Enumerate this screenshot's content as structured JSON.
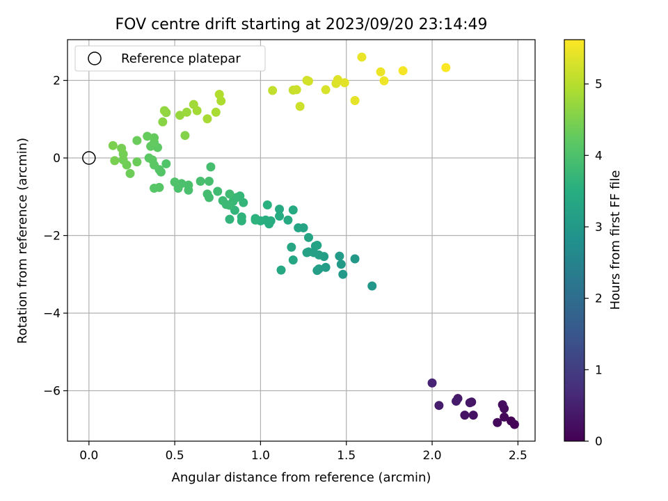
{
  "chart_data": {
    "type": "scatter",
    "title": "FOV centre drift starting at 2023/09/20 23:14:49",
    "xlabel": "Angular distance from reference (arcmin)",
    "ylabel": "Rotation from reference (arcmin)",
    "xlim": [
      -0.125,
      2.6
    ],
    "ylim": [
      -7.3,
      3.05
    ],
    "xticks": [
      {
        "v": 0,
        "label": "0.0"
      },
      {
        "v": 0.5,
        "label": "0.5"
      },
      {
        "v": 1,
        "label": "1.0"
      },
      {
        "v": 1.5,
        "label": "1.5"
      },
      {
        "v": 2,
        "label": "2.0"
      },
      {
        "v": 2.5,
        "label": "2.5"
      }
    ],
    "yticks": [
      {
        "v": -6,
        "label": "−6"
      },
      {
        "v": -4,
        "label": "−4"
      },
      {
        "v": -2,
        "label": "−2"
      },
      {
        "v": 0,
        "label": "0"
      },
      {
        "v": 2,
        "label": "2"
      }
    ],
    "grid": true,
    "legend": {
      "position": "upper-left",
      "entries": [
        "Reference platepar"
      ]
    },
    "reference_point": {
      "x": 0,
      "y": 0,
      "label": "Reference platepar"
    },
    "colorbar": {
      "label": "Hours from first FF file",
      "colormap": "viridis",
      "range": [
        0,
        5.62
      ],
      "ticks": [
        {
          "v": 0,
          "label": "0"
        },
        {
          "v": 1,
          "label": "1"
        },
        {
          "v": 2,
          "label": "2"
        },
        {
          "v": 3,
          "label": "3"
        },
        {
          "v": 4,
          "label": "4"
        },
        {
          "v": 5,
          "label": "5"
        }
      ]
    },
    "points": [
      {
        "x": 2.48,
        "y": -6.87,
        "t": 0.03
      },
      {
        "x": 2.46,
        "y": -6.78,
        "t": 0.06
      },
      {
        "x": 2.42,
        "y": -6.68,
        "t": 0.1
      },
      {
        "x": 2.38,
        "y": -6.82,
        "t": 0.13
      },
      {
        "x": 2.42,
        "y": -6.46,
        "t": 0.16
      },
      {
        "x": 2.41,
        "y": -6.36,
        "t": 0.2
      },
      {
        "x": 2.24,
        "y": -6.63,
        "t": 0.25
      },
      {
        "x": 2.19,
        "y": -6.63,
        "t": 0.28
      },
      {
        "x": 2.23,
        "y": -6.29,
        "t": 0.32
      },
      {
        "x": 2.22,
        "y": -6.31,
        "t": 0.35
      },
      {
        "x": 2.15,
        "y": -6.2,
        "t": 0.38
      },
      {
        "x": 2.14,
        "y": -6.27,
        "t": 0.42
      },
      {
        "x": 2.04,
        "y": -6.38,
        "t": 0.47
      },
      {
        "x": 2.0,
        "y": -5.8,
        "t": 0.55
      },
      {
        "x": 1.65,
        "y": -3.3,
        "t": 2.95
      },
      {
        "x": 1.55,
        "y": -2.6,
        "t": 2.98
      },
      {
        "x": 1.48,
        "y": -3.0,
        "t": 3.0
      },
      {
        "x": 1.47,
        "y": -2.74,
        "t": 3.02
      },
      {
        "x": 1.46,
        "y": -2.53,
        "t": 3.05
      },
      {
        "x": 1.38,
        "y": -2.82,
        "t": 3.07
      },
      {
        "x": 1.37,
        "y": -2.54,
        "t": 3.1
      },
      {
        "x": 1.34,
        "y": -2.86,
        "t": 3.12
      },
      {
        "x": 1.33,
        "y": -2.9,
        "t": 3.13
      },
      {
        "x": 1.34,
        "y": -2.5,
        "t": 3.15
      },
      {
        "x": 1.32,
        "y": -2.27,
        "t": 3.17
      },
      {
        "x": 1.31,
        "y": -2.44,
        "t": 3.18
      },
      {
        "x": 1.28,
        "y": -2.42,
        "t": 3.2
      },
      {
        "x": 1.27,
        "y": -2.44,
        "t": 3.22
      },
      {
        "x": 1.33,
        "y": -2.25,
        "t": 3.24
      },
      {
        "x": 1.28,
        "y": -2.05,
        "t": 3.26
      },
      {
        "x": 1.25,
        "y": -1.8,
        "t": 3.28
      },
      {
        "x": 1.22,
        "y": -1.8,
        "t": 3.3
      },
      {
        "x": 1.18,
        "y": -2.3,
        "t": 3.32
      },
      {
        "x": 1.19,
        "y": -2.63,
        "t": 3.34
      },
      {
        "x": 1.12,
        "y": -2.89,
        "t": 3.36
      },
      {
        "x": 1.16,
        "y": -1.6,
        "t": 3.38
      },
      {
        "x": 1.19,
        "y": -1.34,
        "t": 3.4
      },
      {
        "x": 1.11,
        "y": -1.32,
        "t": 3.42
      },
      {
        "x": 1.11,
        "y": -1.5,
        "t": 3.44
      },
      {
        "x": 1.06,
        "y": -1.62,
        "t": 3.46
      },
      {
        "x": 1.05,
        "y": -1.7,
        "t": 3.48
      },
      {
        "x": 1.03,
        "y": -1.6,
        "t": 3.5
      },
      {
        "x": 1.0,
        "y": -1.62,
        "t": 3.52
      },
      {
        "x": 1.04,
        "y": -1.21,
        "t": 3.54
      },
      {
        "x": 0.97,
        "y": -1.56,
        "t": 3.56
      },
      {
        "x": 0.97,
        "y": -1.6,
        "t": 3.58
      },
      {
        "x": 0.89,
        "y": -1.62,
        "t": 3.6
      },
      {
        "x": 0.89,
        "y": -1.52,
        "t": 3.62
      },
      {
        "x": 0.82,
        "y": -1.58,
        "t": 3.64
      },
      {
        "x": 0.85,
        "y": -1.35,
        "t": 3.66
      },
      {
        "x": 0.9,
        "y": -1.15,
        "t": 3.68
      },
      {
        "x": 0.88,
        "y": -0.98,
        "t": 3.7
      },
      {
        "x": 0.86,
        "y": -1.02,
        "t": 3.72
      },
      {
        "x": 0.84,
        "y": -1.12,
        "t": 3.74
      },
      {
        "x": 0.82,
        "y": -1.22,
        "t": 3.76
      },
      {
        "x": 0.8,
        "y": -1.2,
        "t": 3.78
      },
      {
        "x": 0.78,
        "y": -1.1,
        "t": 3.8
      },
      {
        "x": 0.82,
        "y": -0.93,
        "t": 3.82
      },
      {
        "x": 0.75,
        "y": -0.86,
        "t": 3.84
      },
      {
        "x": 0.7,
        "y": -1.02,
        "t": 3.86
      },
      {
        "x": 0.69,
        "y": -0.93,
        "t": 3.88
      },
      {
        "x": 0.7,
        "y": -0.6,
        "t": 3.9
      },
      {
        "x": 0.71,
        "y": -0.23,
        "t": 3.92
      },
      {
        "x": 0.65,
        "y": -0.6,
        "t": 3.93
      },
      {
        "x": 0.58,
        "y": -0.83,
        "t": 3.95
      },
      {
        "x": 0.58,
        "y": -0.7,
        "t": 3.97
      },
      {
        "x": 0.54,
        "y": -0.66,
        "t": 3.98
      },
      {
        "x": 0.52,
        "y": -0.78,
        "t": 4.0
      },
      {
        "x": 0.5,
        "y": -0.62,
        "t": 4.02
      },
      {
        "x": 0.45,
        "y": -0.15,
        "t": 4.05
      },
      {
        "x": 0.42,
        "y": -0.36,
        "t": 4.07
      },
      {
        "x": 0.41,
        "y": -0.3,
        "t": 4.09
      },
      {
        "x": 0.41,
        "y": -0.76,
        "t": 4.11
      },
      {
        "x": 0.38,
        "y": -0.78,
        "t": 4.13
      },
      {
        "x": 0.38,
        "y": -0.18,
        "t": 4.15
      },
      {
        "x": 0.37,
        "y": -0.05,
        "t": 4.17
      },
      {
        "x": 0.35,
        "y": 0.0,
        "t": 4.19
      },
      {
        "x": 0.4,
        "y": 0.27,
        "t": 4.21
      },
      {
        "x": 0.36,
        "y": 0.3,
        "t": 4.23
      },
      {
        "x": 0.38,
        "y": 0.4,
        "t": 4.25
      },
      {
        "x": 0.38,
        "y": 0.52,
        "t": 4.27
      },
      {
        "x": 0.34,
        "y": 0.56,
        "t": 4.29
      },
      {
        "x": 0.28,
        "y": 0.45,
        "t": 4.31
      },
      {
        "x": 0.28,
        "y": -0.1,
        "t": 4.33
      },
      {
        "x": 0.24,
        "y": -0.4,
        "t": 4.35
      },
      {
        "x": 0.22,
        "y": -0.18,
        "t": 4.37
      },
      {
        "x": 0.2,
        "y": -0.05,
        "t": 4.39
      },
      {
        "x": 0.2,
        "y": 0.1,
        "t": 4.41
      },
      {
        "x": 0.19,
        "y": 0.25,
        "t": 4.43
      },
      {
        "x": 0.15,
        "y": -0.07,
        "t": 4.45
      },
      {
        "x": 0.14,
        "y": 0.32,
        "t": 4.47
      },
      {
        "x": 0.56,
        "y": 0.58,
        "t": 4.55
      },
      {
        "x": 0.43,
        "y": 0.93,
        "t": 4.6
      },
      {
        "x": 0.45,
        "y": 1.17,
        "t": 4.64
      },
      {
        "x": 0.44,
        "y": 1.22,
        "t": 4.68
      },
      {
        "x": 0.53,
        "y": 1.1,
        "t": 4.72
      },
      {
        "x": 0.57,
        "y": 1.18,
        "t": 4.76
      },
      {
        "x": 0.61,
        "y": 1.38,
        "t": 4.8
      },
      {
        "x": 0.63,
        "y": 1.22,
        "t": 4.83
      },
      {
        "x": 0.69,
        "y": 1.01,
        "t": 4.86
      },
      {
        "x": 0.74,
        "y": 1.18,
        "t": 4.89
      },
      {
        "x": 0.77,
        "y": 1.47,
        "t": 4.92
      },
      {
        "x": 0.76,
        "y": 1.64,
        "t": 4.95
      },
      {
        "x": 1.07,
        "y": 1.74,
        "t": 5.1
      },
      {
        "x": 1.19,
        "y": 1.75,
        "t": 5.14
      },
      {
        "x": 1.21,
        "y": 1.76,
        "t": 5.17
      },
      {
        "x": 1.23,
        "y": 1.33,
        "t": 5.2
      },
      {
        "x": 1.27,
        "y": 2.0,
        "t": 5.23
      },
      {
        "x": 1.28,
        "y": 1.98,
        "t": 5.26
      },
      {
        "x": 1.38,
        "y": 1.76,
        "t": 5.29
      },
      {
        "x": 1.44,
        "y": 1.92,
        "t": 5.32
      },
      {
        "x": 1.45,
        "y": 2.02,
        "t": 5.35
      },
      {
        "x": 1.49,
        "y": 1.94,
        "t": 5.38
      },
      {
        "x": 1.55,
        "y": 1.48,
        "t": 5.41
      },
      {
        "x": 1.59,
        "y": 2.6,
        "t": 5.44
      },
      {
        "x": 1.7,
        "y": 2.22,
        "t": 5.47
      },
      {
        "x": 1.72,
        "y": 1.99,
        "t": 5.5
      },
      {
        "x": 1.83,
        "y": 2.25,
        "t": 5.54
      },
      {
        "x": 2.08,
        "y": 2.33,
        "t": 5.6
      }
    ]
  }
}
